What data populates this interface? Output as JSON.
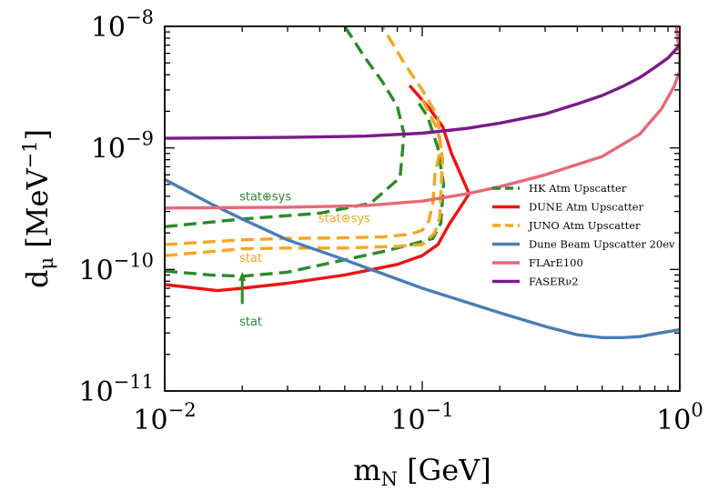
{
  "chart_data": {
    "type": "line",
    "xscale": "log",
    "yscale": "log",
    "xlim": [
      0.01,
      1.0
    ],
    "ylim": [
      1e-11,
      1e-08
    ],
    "xlabel": {
      "main": "m",
      "sub": "N",
      "rest": " [GeV]"
    },
    "ylabel": {
      "main": "d",
      "sub": "μ",
      "rest": " [MeV",
      "sup": "−1",
      "end": "]"
    },
    "xticks": [
      {
        "value": 0.01,
        "base": "10",
        "exp": "−2"
      },
      {
        "value": 0.1,
        "base": "10",
        "exp": "−1"
      },
      {
        "value": 1.0,
        "base": "10",
        "exp": "0"
      }
    ],
    "yticks": [
      {
        "value": 1e-11,
        "base": "10",
        "exp": "−11"
      },
      {
        "value": 1e-10,
        "base": "10",
        "exp": "−10"
      },
      {
        "value": 1e-09,
        "base": "10",
        "exp": "−9"
      },
      {
        "value": 1e-08,
        "base": "10",
        "exp": "−8"
      }
    ],
    "legend_position": "right",
    "series": [
      {
        "name": "HK Atm Upscatter",
        "color": "#2a8a2a",
        "style": "dashed",
        "segments": [
          [
            [
              0.01,
              9.7e-11
            ],
            [
              0.015,
              9e-11
            ],
            [
              0.02,
              8.8e-11
            ],
            [
              0.03,
              9.5e-11
            ],
            [
              0.05,
              1.2e-10
            ],
            [
              0.07,
              1.4e-10
            ],
            [
              0.09,
              1.6e-10
            ],
            [
              0.11,
              1.8e-10
            ],
            [
              0.118,
              2.4e-10
            ],
            [
              0.121,
              5e-10
            ],
            [
              0.115,
              1e-09
            ],
            [
              0.105,
              1.8e-09
            ],
            [
              0.095,
              2.5e-09
            ]
          ],
          [
            [
              0.01,
              2.25e-10
            ],
            [
              0.02,
              2.6e-10
            ],
            [
              0.04,
              2.9e-10
            ],
            [
              0.063,
              3.5e-10
            ],
            [
              0.082,
              5.7e-10
            ],
            [
              0.085,
              1.3e-09
            ],
            [
              0.08,
              2.2e-09
            ],
            [
              0.07,
              3.5e-09
            ],
            [
              0.06,
              5.5e-09
            ],
            [
              0.05,
              1e-08
            ]
          ]
        ]
      },
      {
        "name": "DUNE Atm Upscatter",
        "color": "#ee1111",
        "style": "solid",
        "segments": [
          [
            [
              0.01,
              7.5e-11
            ],
            [
              0.016,
              6.7e-11
            ],
            [
              0.02,
              7e-11
            ],
            [
              0.03,
              7.7e-11
            ],
            [
              0.05,
              9e-11
            ],
            [
              0.08,
              1.1e-10
            ],
            [
              0.1,
              1.3e-10
            ],
            [
              0.115,
              1.6e-10
            ],
            [
              0.128,
              2.4e-10
            ],
            [
              0.14,
              3.2e-10
            ],
            [
              0.152,
              4.2e-10
            ],
            [
              0.13,
              9e-10
            ],
            [
              0.12,
              1.5e-09
            ],
            [
              0.105,
              2.2e-09
            ],
            [
              0.09,
              3.2e-09
            ]
          ]
        ]
      },
      {
        "name": "JUNO Atm Upscatter",
        "color": "#f5a623",
        "style": "dashed",
        "segments": [
          [
            [
              0.01,
              1.3e-10
            ],
            [
              0.015,
              1.4e-10
            ],
            [
              0.02,
              1.48e-10
            ],
            [
              0.03,
              1.5e-10
            ],
            [
              0.05,
              1.5e-10
            ],
            [
              0.08,
              1.55e-10
            ],
            [
              0.1,
              1.6e-10
            ],
            [
              0.112,
              2e-10
            ],
            [
              0.117,
              2.7e-10
            ],
            [
              0.118,
              4e-10
            ],
            [
              0.12,
              8e-10
            ],
            [
              0.115,
              1.4e-09
            ],
            [
              0.1,
              2.5e-09
            ]
          ],
          [
            [
              0.01,
              1.6e-10
            ],
            [
              0.02,
              1.75e-10
            ],
            [
              0.03,
              1.8e-10
            ],
            [
              0.05,
              1.82e-10
            ],
            [
              0.07,
              1.85e-10
            ],
            [
              0.09,
              1.95e-10
            ],
            [
              0.1,
              2.1e-10
            ],
            [
              0.106,
              2.5e-10
            ],
            [
              0.11,
              3.5e-10
            ],
            [
              0.112,
              6e-10
            ],
            [
              0.118,
              1e-09
            ],
            [
              0.115,
              1.8e-09
            ],
            [
              0.1,
              3e-09
            ],
            [
              0.085,
              5e-09
            ],
            [
              0.07,
              1e-08
            ]
          ]
        ]
      },
      {
        "name": "Dune Beam Upscatter 20ev",
        "color": "#4a7db5",
        "style": "solid",
        "segments": [
          [
            [
              0.01,
              5.5e-10
            ],
            [
              0.015,
              3.5e-10
            ],
            [
              0.02,
              2.6e-10
            ],
            [
              0.03,
              1.75e-10
            ],
            [
              0.05,
              1.2e-10
            ],
            [
              0.1,
              7e-11
            ],
            [
              0.2,
              4.4e-11
            ],
            [
              0.3,
              3.4e-11
            ],
            [
              0.4,
              2.9e-11
            ],
            [
              0.5,
              2.75e-11
            ],
            [
              0.6,
              2.75e-11
            ],
            [
              0.7,
              2.8e-11
            ],
            [
              0.8,
              2.95e-11
            ],
            [
              1.0,
              3.2e-11
            ]
          ]
        ]
      },
      {
        "name": "FLArE100",
        "color": "#e86878",
        "style": "solid",
        "segments": [
          [
            [
              0.01,
              3.2e-10
            ],
            [
              0.03,
              3.25e-10
            ],
            [
              0.06,
              3.35e-10
            ],
            [
              0.1,
              3.65e-10
            ],
            [
              0.15,
              4.2e-10
            ],
            [
              0.2,
              4.8e-10
            ],
            [
              0.3,
              6e-10
            ],
            [
              0.5,
              8.5e-10
            ],
            [
              0.7,
              1.3e-09
            ],
            [
              0.85,
              2.1e-09
            ],
            [
              0.95,
              3.2e-09
            ],
            [
              1.0,
              4.3e-09
            ],
            [
              1.0,
              6e-09
            ],
            [
              0.98,
              8e-09
            ],
            [
              0.97,
              1e-08
            ]
          ]
        ]
      },
      {
        "name": "FASERν2",
        "color": "#7a1a8a",
        "style": "solid",
        "segments": [
          [
            [
              0.01,
              1.2e-09
            ],
            [
              0.03,
              1.22e-09
            ],
            [
              0.06,
              1.25e-09
            ],
            [
              0.1,
              1.32e-09
            ],
            [
              0.15,
              1.45e-09
            ],
            [
              0.2,
              1.6e-09
            ],
            [
              0.3,
              1.9e-09
            ],
            [
              0.4,
              2.3e-09
            ],
            [
              0.5,
              2.7e-09
            ],
            [
              0.6,
              3.2e-09
            ],
            [
              0.7,
              3.8e-09
            ],
            [
              0.8,
              4.6e-09
            ],
            [
              0.9,
              5.5e-09
            ],
            [
              1.0,
              7e-09
            ]
          ]
        ]
      }
    ],
    "annotations": [
      {
        "key": "hk_statsys",
        "text": "stat⊕sys",
        "color": "#2a8a2a",
        "x": 0.0195,
        "y": 3.7e-10,
        "anchor": "start"
      },
      {
        "key": "juno_statsys",
        "text": "stat⊕sys",
        "color": "#f5a623",
        "x": 0.0395,
        "y": 2.45e-10,
        "anchor": "start"
      },
      {
        "key": "juno_stat",
        "text": "stat",
        "color": "#f5a623",
        "x": 0.0195,
        "y": 1.15e-10,
        "anchor": "start"
      },
      {
        "key": "hk_stat",
        "text": "stat",
        "color": "#2a8a2a",
        "x": 0.0195,
        "y": 3.45e-11,
        "anchor": "start"
      }
    ],
    "arrow": {
      "color": "#2a8a2a",
      "x": 0.02,
      "from_y": 5.2e-11,
      "to_y": 9.6e-11
    }
  }
}
